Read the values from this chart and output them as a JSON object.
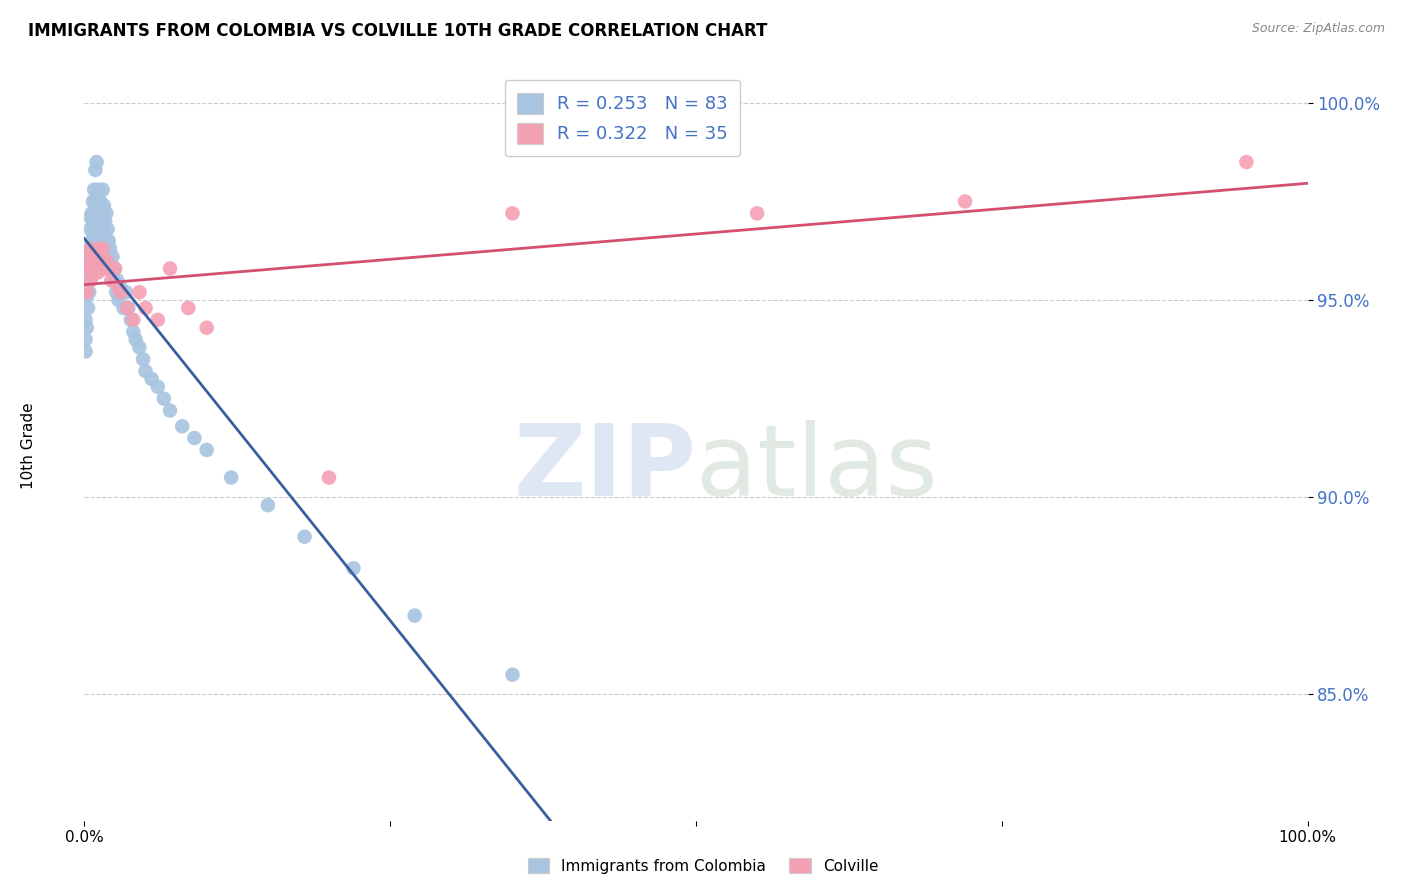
{
  "title": "IMMIGRANTS FROM COLOMBIA VS COLVILLE 10TH GRADE CORRELATION CHART",
  "source": "Source: ZipAtlas.com",
  "ylabel": "10th Grade",
  "xlim": [
    0.0,
    1.0
  ],
  "ylim": [
    0.818,
    1.008
  ],
  "yticks": [
    0.85,
    0.9,
    0.95,
    1.0
  ],
  "ytick_labels": [
    "85.0%",
    "90.0%",
    "95.0%",
    "100.0%"
  ],
  "r_colombia": 0.253,
  "n_colombia": 83,
  "r_colville": 0.322,
  "n_colville": 35,
  "color_colombia": "#a8c4e0",
  "color_colville": "#f4a0b4",
  "line_color_colombia": "#3a5fa0",
  "line_color_colville": "#d45070",
  "colombia_x": [
    0.001,
    0.001,
    0.001,
    0.002,
    0.002,
    0.003,
    0.003,
    0.003,
    0.004,
    0.004,
    0.004,
    0.005,
    0.005,
    0.005,
    0.005,
    0.006,
    0.006,
    0.006,
    0.007,
    0.007,
    0.007,
    0.007,
    0.008,
    0.008,
    0.008,
    0.008,
    0.009,
    0.009,
    0.009,
    0.01,
    0.01,
    0.01,
    0.01,
    0.011,
    0.011,
    0.012,
    0.012,
    0.012,
    0.013,
    0.013,
    0.014,
    0.014,
    0.015,
    0.015,
    0.016,
    0.016,
    0.017,
    0.018,
    0.018,
    0.019,
    0.02,
    0.02,
    0.021,
    0.022,
    0.023,
    0.024,
    0.025,
    0.026,
    0.027,
    0.028,
    0.03,
    0.032,
    0.034,
    0.036,
    0.038,
    0.04,
    0.042,
    0.045,
    0.048,
    0.05,
    0.055,
    0.06,
    0.065,
    0.07,
    0.08,
    0.09,
    0.1,
    0.12,
    0.15,
    0.18,
    0.22,
    0.27,
    0.35
  ],
  "colombia_y": [
    0.94,
    0.945,
    0.937,
    0.943,
    0.951,
    0.955,
    0.948,
    0.96,
    0.958,
    0.952,
    0.963,
    0.968,
    0.961,
    0.955,
    0.971,
    0.965,
    0.972,
    0.958,
    0.97,
    0.963,
    0.975,
    0.967,
    0.972,
    0.965,
    0.978,
    0.96,
    0.975,
    0.968,
    0.983,
    0.977,
    0.97,
    0.963,
    0.985,
    0.973,
    0.966,
    0.978,
    0.971,
    0.964,
    0.975,
    0.968,
    0.972,
    0.965,
    0.978,
    0.971,
    0.974,
    0.967,
    0.97,
    0.965,
    0.972,
    0.968,
    0.965,
    0.96,
    0.963,
    0.958,
    0.961,
    0.955,
    0.958,
    0.952,
    0.955,
    0.95,
    0.953,
    0.948,
    0.952,
    0.948,
    0.945,
    0.942,
    0.94,
    0.938,
    0.935,
    0.932,
    0.93,
    0.928,
    0.925,
    0.922,
    0.918,
    0.915,
    0.912,
    0.905,
    0.898,
    0.89,
    0.882,
    0.87,
    0.855
  ],
  "colville_x": [
    0.002,
    0.003,
    0.004,
    0.005,
    0.005,
    0.006,
    0.007,
    0.008,
    0.009,
    0.01,
    0.011,
    0.012,
    0.013,
    0.014,
    0.015,
    0.016,
    0.018,
    0.02,
    0.022,
    0.025,
    0.028,
    0.03,
    0.035,
    0.04,
    0.045,
    0.05,
    0.06,
    0.07,
    0.085,
    0.1,
    0.2,
    0.35,
    0.55,
    0.72,
    0.95
  ],
  "colville_y": [
    0.952,
    0.96,
    0.958,
    0.963,
    0.955,
    0.958,
    0.962,
    0.957,
    0.96,
    0.962,
    0.957,
    0.963,
    0.958,
    0.96,
    0.963,
    0.958,
    0.96,
    0.958,
    0.955,
    0.958,
    0.953,
    0.952,
    0.948,
    0.945,
    0.952,
    0.948,
    0.945,
    0.958,
    0.948,
    0.943,
    0.905,
    0.972,
    0.972,
    0.975,
    0.985
  ],
  "legend_r_text_color": "#4472c4",
  "legend_n_text_color": "#4472c4"
}
